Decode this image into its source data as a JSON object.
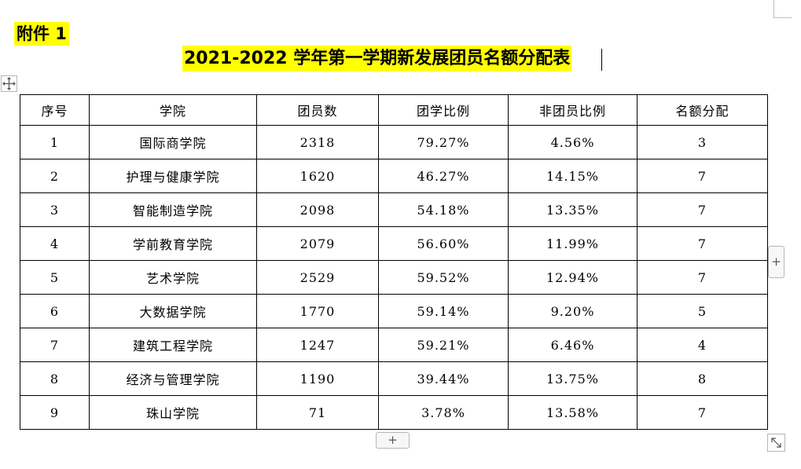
{
  "document": {
    "attachment_label": "附件 1",
    "title": "2021-2022 学年第一学期新发展团员名额分配表"
  },
  "table": {
    "headers": [
      "序号",
      "学院",
      "团员数",
      "团学比例",
      "非团员比例",
      "名额分配"
    ],
    "rows": [
      [
        "1",
        "国际商学院",
        "2318",
        "79.27%",
        "4.56%",
        "3"
      ],
      [
        "2",
        "护理与健康学院",
        "1620",
        "46.27%",
        "14.15%",
        "7"
      ],
      [
        "3",
        "智能制造学院",
        "2098",
        "54.18%",
        "13.35%",
        "7"
      ],
      [
        "4",
        "学前教育学院",
        "2079",
        "56.60%",
        "11.99%",
        "7"
      ],
      [
        "5",
        "艺术学院",
        "2529",
        "59.52%",
        "12.94%",
        "7"
      ],
      [
        "6",
        "大数据学院",
        "1770",
        "59.14%",
        "9.20%",
        "5"
      ],
      [
        "7",
        "建筑工程学院",
        "1247",
        "59.21%",
        "6.46%",
        "4"
      ],
      [
        "8",
        "经济与管理学院",
        "1190",
        "39.44%",
        "13.75%",
        "8"
      ],
      [
        "9",
        "珠山学院",
        "71",
        "3.78%",
        "13.58%",
        "7"
      ]
    ]
  },
  "controls": {
    "add_row_label": "+",
    "add_column_label": "+",
    "move_icon": "move-arrows-icon",
    "resize_icon": "resize-diagonal-icon"
  }
}
